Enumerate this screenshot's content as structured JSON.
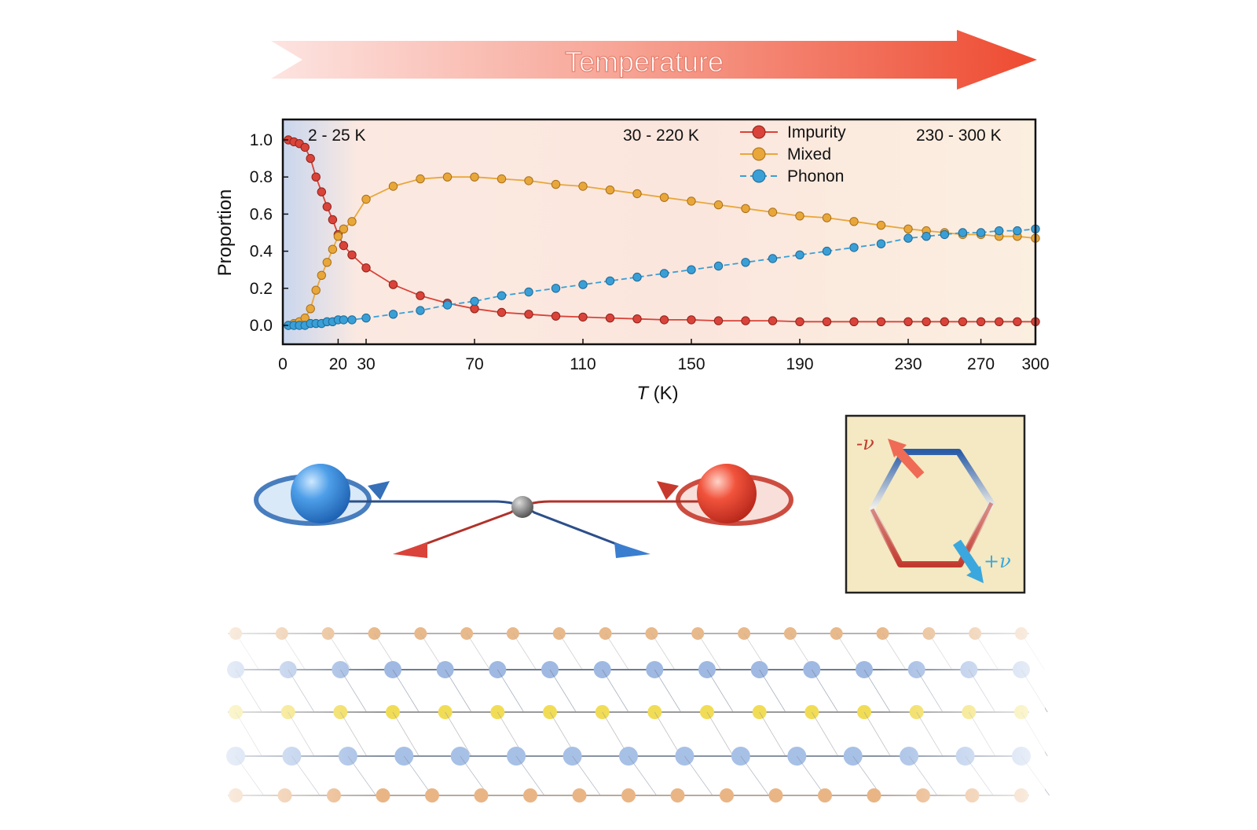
{
  "banner": {
    "label": "Temperature"
  },
  "chart_data": {
    "type": "line",
    "xlabel_italic": "T",
    "xlabel_unit": "(K)",
    "ylabel": "Proportion",
    "xlim": [
      0,
      300
    ],
    "ylim": [
      -0.1,
      1.1
    ],
    "x_scale": "piecewise",
    "x_ticks": [
      0,
      20,
      30,
      70,
      110,
      150,
      190,
      230,
      270,
      300
    ],
    "y_ticks": [
      0.0,
      0.2,
      0.4,
      0.6,
      0.8,
      1.0
    ],
    "y_tick_labels": [
      "0.0",
      "0.2",
      "0.4",
      "0.6",
      "0.8",
      "1.0"
    ],
    "regions": [
      {
        "label": "2 - 25 K",
        "from": 0,
        "to": 25
      },
      {
        "label": "30 - 220 K",
        "from": 30,
        "to": 220
      },
      {
        "label": "230 - 300 K",
        "from": 230,
        "to": 300
      }
    ],
    "legend_position": "top-center",
    "series": [
      {
        "name": "Impurity",
        "color": "#d9433a",
        "x": [
          2,
          4,
          6,
          8,
          10,
          12,
          14,
          16,
          18,
          20,
          22,
          25,
          30,
          40,
          50,
          60,
          70,
          80,
          90,
          100,
          110,
          120,
          130,
          140,
          150,
          160,
          170,
          180,
          190,
          200,
          210,
          220,
          230,
          240,
          250,
          260,
          270,
          280,
          290,
          300
        ],
        "y": [
          1.0,
          0.99,
          0.98,
          0.96,
          0.9,
          0.8,
          0.72,
          0.64,
          0.57,
          0.49,
          0.43,
          0.38,
          0.31,
          0.22,
          0.16,
          0.12,
          0.09,
          0.07,
          0.06,
          0.05,
          0.045,
          0.04,
          0.035,
          0.03,
          0.03,
          0.025,
          0.025,
          0.025,
          0.02,
          0.02,
          0.02,
          0.02,
          0.02,
          0.02,
          0.02,
          0.02,
          0.02,
          0.02,
          0.02,
          0.02
        ]
      },
      {
        "name": "Mixed",
        "color": "#e9a73a",
        "x": [
          2,
          4,
          6,
          8,
          10,
          12,
          14,
          16,
          18,
          20,
          22,
          25,
          30,
          40,
          50,
          60,
          70,
          80,
          90,
          100,
          110,
          120,
          130,
          140,
          150,
          160,
          170,
          180,
          190,
          200,
          210,
          220,
          230,
          240,
          250,
          260,
          270,
          280,
          290,
          300
        ],
        "y": [
          0.0,
          0.01,
          0.02,
          0.04,
          0.09,
          0.19,
          0.27,
          0.34,
          0.41,
          0.48,
          0.52,
          0.56,
          0.68,
          0.75,
          0.79,
          0.8,
          0.8,
          0.79,
          0.78,
          0.76,
          0.75,
          0.73,
          0.71,
          0.69,
          0.67,
          0.65,
          0.63,
          0.61,
          0.59,
          0.58,
          0.56,
          0.54,
          0.52,
          0.51,
          0.5,
          0.49,
          0.49,
          0.48,
          0.48,
          0.47
        ]
      },
      {
        "name": "Phonon",
        "color": "#3a9fd6",
        "x": [
          2,
          4,
          6,
          8,
          10,
          12,
          14,
          16,
          18,
          20,
          22,
          25,
          30,
          40,
          50,
          60,
          70,
          80,
          90,
          100,
          110,
          120,
          130,
          140,
          150,
          160,
          170,
          180,
          190,
          200,
          210,
          220,
          230,
          240,
          250,
          260,
          270,
          280,
          290,
          300
        ],
        "y": [
          0.0,
          0.0,
          0.0,
          0.0,
          0.01,
          0.01,
          0.01,
          0.02,
          0.02,
          0.03,
          0.03,
          0.03,
          0.04,
          0.06,
          0.08,
          0.11,
          0.13,
          0.16,
          0.18,
          0.2,
          0.22,
          0.24,
          0.26,
          0.28,
          0.3,
          0.32,
          0.34,
          0.36,
          0.38,
          0.4,
          0.42,
          0.44,
          0.47,
          0.48,
          0.49,
          0.5,
          0.5,
          0.51,
          0.51,
          0.52
        ]
      }
    ]
  },
  "inset": {
    "minus_v_label": "-ν",
    "plus_v_label": "+ν"
  },
  "colors": {
    "impurity": "#d9433a",
    "mixed": "#e9a73a",
    "phonon": "#3a9fd6",
    "arrow": "#ee4a30"
  }
}
